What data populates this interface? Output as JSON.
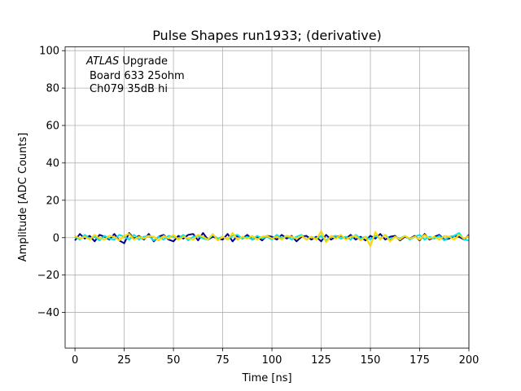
{
  "chart_data": {
    "type": "line",
    "title": "Pulse Shapes run1933; (derivative)",
    "xlabel": "Time [ns]",
    "ylabel": "Amplitude [ADC Counts]",
    "xlim": [
      -5,
      200
    ],
    "ylim": [
      -59,
      102
    ],
    "xticks": [
      0,
      25,
      50,
      75,
      100,
      125,
      150,
      175,
      200
    ],
    "yticks": [
      -40,
      -20,
      0,
      20,
      40,
      60,
      80,
      100
    ],
    "grid": true,
    "annotation": {
      "italic": "ATLAS",
      "rest": " Upgrade",
      "line2": "Board 633 25ohm",
      "line3": "Ch079 35dB hi"
    },
    "series": [
      {
        "color": "#00008b",
        "x": [
          0,
          2.5,
          5,
          7.5,
          10,
          12.5,
          15,
          17.5,
          20,
          22.5,
          25,
          27.5,
          30,
          32.5,
          35,
          37.5,
          40,
          42.5,
          45,
          47.5,
          50,
          52.5,
          55,
          57.5,
          60,
          62.5,
          65,
          67.5,
          70,
          72.5,
          75,
          77.5,
          80,
          82.5,
          85,
          87.5,
          90,
          92.5,
          95,
          97.5,
          100,
          102.5,
          105,
          107.5,
          110,
          112.5,
          115,
          117.5,
          120,
          122.5,
          125,
          127.5,
          130,
          132.5,
          135,
          137.5,
          140,
          142.5,
          145,
          147.5,
          150,
          152.5,
          155,
          157.5,
          160,
          162.5,
          165,
          167.5,
          170,
          172.5,
          175,
          177.5,
          180,
          182.5,
          185,
          187.5,
          190,
          192.5,
          195,
          197.5,
          200
        ],
        "y": [
          -1.5,
          2,
          -0.5,
          1,
          -2,
          1.5,
          0.5,
          -1,
          2,
          -1.5,
          -3,
          2.5,
          -0.5,
          1,
          -1,
          2,
          -2,
          0.5,
          1.5,
          -1,
          -2,
          1,
          -0.5,
          1.5,
          2,
          -1.5,
          2.5,
          -1,
          0.5,
          -0.5,
          -1,
          2,
          -2,
          1,
          -0.5,
          1.5,
          -1,
          0.5,
          -1.5,
          1,
          0.5,
          -1,
          1.5,
          -0.5,
          1,
          -2,
          0.5,
          1,
          -1,
          0.5,
          -2,
          1.5,
          -1,
          0.5,
          1,
          -0.5,
          1.5,
          -1,
          0.5,
          -1.5,
          1,
          -0.5,
          2,
          -1,
          0.5,
          1,
          -1.5,
          0.5,
          -0.5,
          1,
          -1.5,
          2,
          -1,
          0.5,
          1.5,
          -1,
          -0.5,
          1,
          0.5,
          -1,
          1.5
        ]
      },
      {
        "color": "#00e5e5",
        "x": [
          0,
          2.5,
          5,
          7.5,
          10,
          12.5,
          15,
          17.5,
          20,
          22.5,
          25,
          27.5,
          30,
          32.5,
          35,
          37.5,
          40,
          42.5,
          45,
          47.5,
          50,
          52.5,
          55,
          57.5,
          60,
          62.5,
          65,
          67.5,
          70,
          72.5,
          75,
          77.5,
          80,
          82.5,
          85,
          87.5,
          90,
          92.5,
          95,
          97.5,
          100,
          102.5,
          105,
          107.5,
          110,
          112.5,
          115,
          117.5,
          120,
          122.5,
          125,
          127.5,
          130,
          132.5,
          135,
          137.5,
          140,
          142.5,
          145,
          147.5,
          150,
          152.5,
          155,
          157.5,
          160,
          162.5,
          165,
          167.5,
          170,
          172.5,
          175,
          177.5,
          180,
          182.5,
          185,
          187.5,
          190,
          192.5,
          195,
          197.5,
          200
        ],
        "y": [
          0.5,
          -1,
          1.5,
          -0.5,
          0.5,
          -1.5,
          1,
          -0.5,
          -1,
          1.5,
          0.5,
          -1,
          1.5,
          -1,
          0.5,
          1,
          -1.5,
          0.5,
          -1,
          1,
          0.5,
          -0.5,
          1.5,
          -1.5,
          0.5,
          1,
          -0.5,
          -1,
          1.5,
          -0.5,
          0.5,
          -1,
          1,
          1.5,
          -0.5,
          0.5,
          -1,
          1,
          -0.5,
          0.5,
          -1,
          1.5,
          -0.5,
          1,
          -1,
          0.5,
          1.5,
          -1,
          0.5,
          -0.5,
          1,
          -1.5,
          0.5,
          1,
          -0.5,
          0.5,
          -1,
          1.5,
          -0.5,
          0.5,
          -1,
          1,
          -0.5,
          1.5,
          -1,
          0.5,
          -0.5,
          1,
          -1,
          0.5,
          1.5,
          -1,
          0.5,
          -0.5,
          1,
          -1.5,
          0.5,
          1,
          2.5,
          -1,
          -1.5
        ]
      },
      {
        "color": "#ffd700",
        "x": [
          0,
          2.5,
          5,
          7.5,
          10,
          12.5,
          15,
          17.5,
          20,
          22.5,
          25,
          27.5,
          30,
          32.5,
          35,
          37.5,
          40,
          42.5,
          45,
          47.5,
          50,
          52.5,
          55,
          57.5,
          60,
          62.5,
          65,
          67.5,
          70,
          72.5,
          75,
          77.5,
          80,
          82.5,
          85,
          87.5,
          90,
          92.5,
          95,
          97.5,
          100,
          102.5,
          105,
          107.5,
          110,
          112.5,
          115,
          117.5,
          120,
          122.5,
          125,
          127.5,
          130,
          132.5,
          135,
          137.5,
          140,
          142.5,
          145,
          147.5,
          150,
          152.5,
          155,
          157.5,
          160,
          162.5,
          165,
          167.5,
          170,
          172.5,
          175,
          177.5,
          180,
          182.5,
          185,
          187.5,
          190,
          192.5,
          195,
          197.5,
          200
        ],
        "y": [
          1,
          -0.5,
          0.5,
          -1,
          1.5,
          -0.5,
          -1,
          1,
          0.5,
          -1.5,
          1,
          2,
          -1,
          0.5,
          -0.5,
          1,
          0.5,
          -1.5,
          1,
          -0.5,
          1.5,
          -1,
          0.5,
          -0.5,
          -1,
          1.5,
          0.5,
          -1,
          2,
          -1.5,
          0.5,
          -1,
          2.5,
          -1,
          0.5,
          -0.5,
          1,
          -1,
          0.5,
          1,
          -0.5,
          0.5,
          -1,
          1,
          0.5,
          -0.5,
          1,
          -1,
          0.5,
          -1,
          3.5,
          -2.5,
          1,
          -0.5,
          1.5,
          -1,
          0.5,
          1,
          -1.5,
          0.5,
          -4.5,
          3,
          -1,
          1.5,
          -2,
          0.5,
          -1,
          1,
          -0.5,
          0.5,
          -1,
          1.5,
          -0.5,
          0.5,
          -1,
          1,
          0.5,
          -1,
          1.5,
          -0.5,
          1
        ]
      }
    ]
  }
}
